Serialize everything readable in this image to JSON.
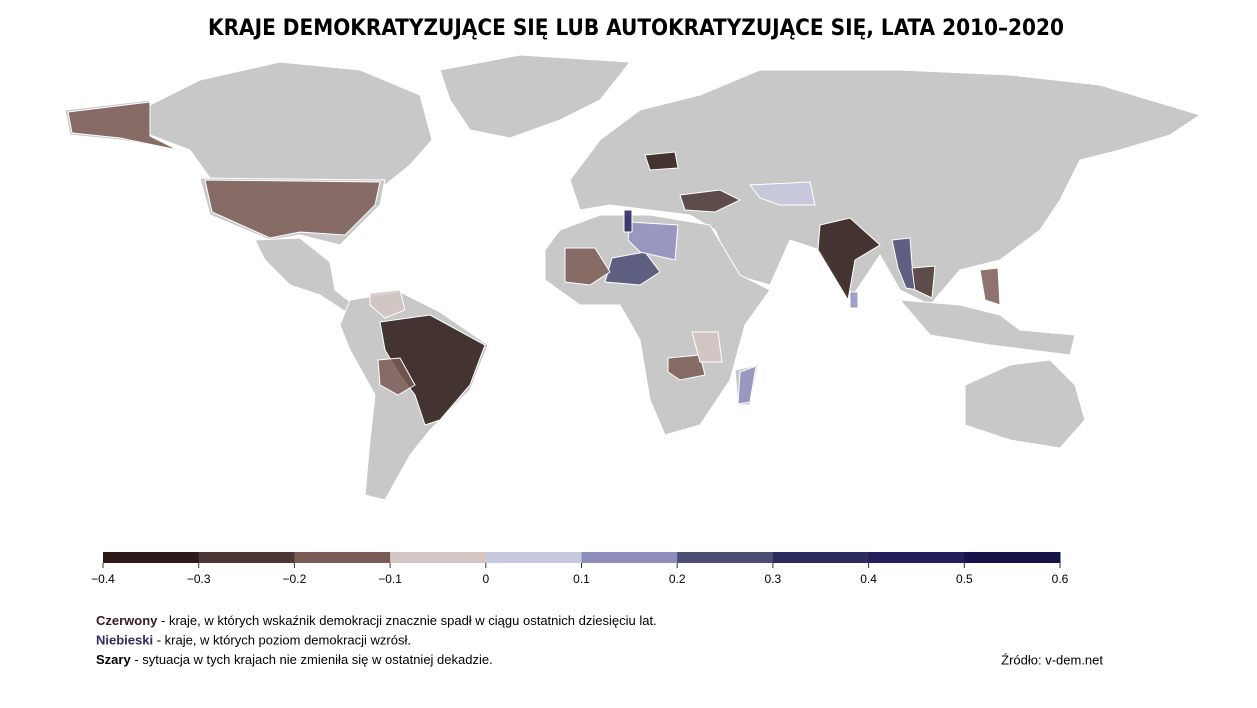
{
  "chart_data": {
    "type": "choropleth",
    "title": "KRAJE DEMOKRATYZUJĄCE SIĘ LUB AUTOKRATYZUJĄCE SIĘ, LATA 2010–2020",
    "values": [
      -0.15,
      -0.15,
      -0.35,
      -0.33,
      -0.38,
      -0.3,
      0.25,
      0.15,
      0.45,
      0.2,
      0.15,
      -0.15,
      -0.15,
      -0.2,
      -0.05,
      -0.05,
      0.05,
      0.15,
      -0.25,
      -0.2
    ],
    "no_data_color": "#c8c8c8",
    "colors": [
      "#2b1a17",
      "#4a3633",
      "#7a5b55",
      "#d4c6c3",
      "#c8c8e0",
      "#8e8ebd",
      "#4c4c75",
      "#2e2c5e",
      "#22205a",
      "#16154a"
    ],
    "clim": [
      -0.4,
      0.6
    ],
    "ticks": [
      {
        "value": -0.4,
        "label": "−0.4"
      },
      {
        "value": -0.3,
        "label": "−0.3"
      },
      {
        "value": -0.2,
        "label": "−0.2"
      },
      {
        "value": -0.1,
        "label": "−0.1"
      },
      0,
      0.1,
      0.2,
      0.3,
      0.4,
      0.5,
      0.6
    ],
    "legend": [
      {
        "term": "Czerwony",
        "text": " - kraje, w których wskaźnik demokracji znacznie spadł w ciągu ostatnich dziesięciu lat.",
        "color": "#3a1a1a"
      },
      {
        "term": "Niebieski",
        "text": " - kraje, w których poziom demokracji wzrósł.",
        "color": "#2e2c5e"
      },
      {
        "term": "Szary",
        "text": " - sytuacja w tych krajach nie zmieniła się w ostatniej dekadzie.",
        "color": "#000000"
      }
    ],
    "source": "Źródło: v-dem.net"
  }
}
